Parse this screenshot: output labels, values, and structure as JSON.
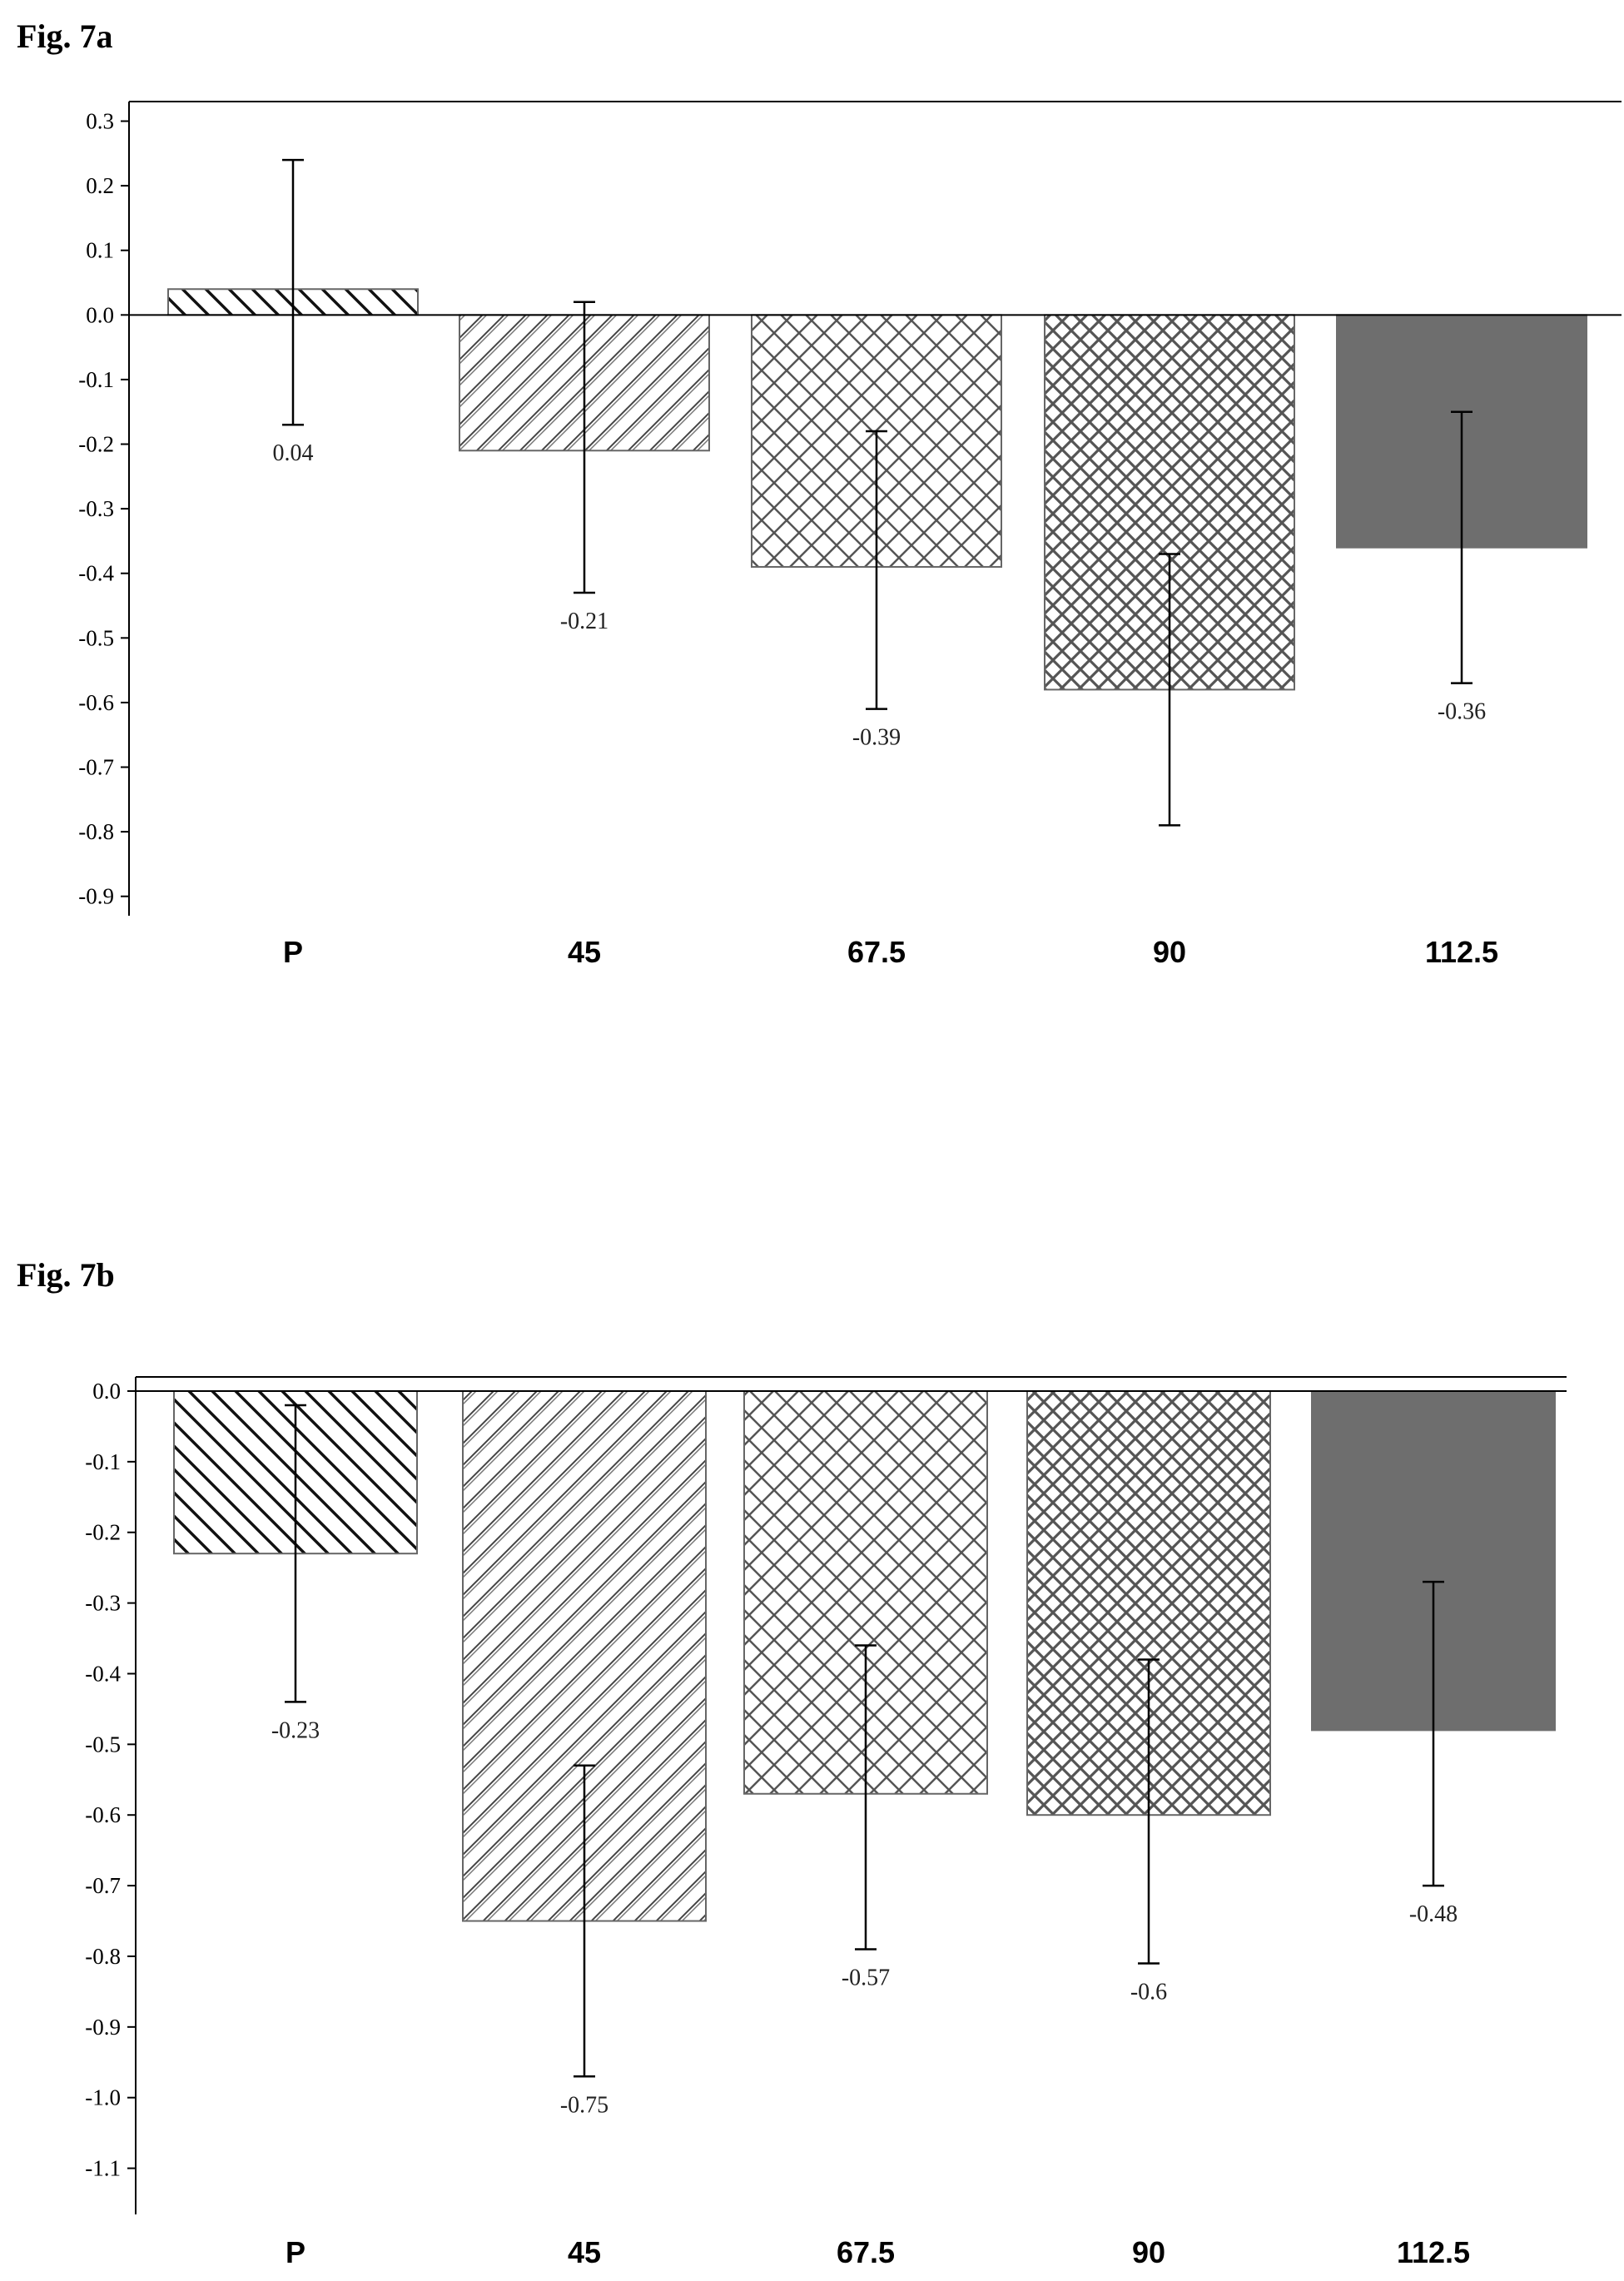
{
  "figures": [
    {
      "label": "Fig. 7a"
    },
    {
      "label": "Fig. 7b"
    }
  ],
  "chart_data": [
    {
      "type": "bar",
      "title": "",
      "xlabel": "",
      "ylabel": "",
      "categories": [
        "P",
        "45",
        "67.5",
        "90",
        "112.5"
      ],
      "values": [
        0.04,
        -0.21,
        -0.39,
        -0.58,
        -0.36
      ],
      "value_labels": [
        "0.04",
        "-0.21",
        "-0.39",
        "",
        "-0.36"
      ],
      "error_low": [
        -0.17,
        -0.43,
        -0.61,
        -0.79,
        -0.57
      ],
      "error_high": [
        0.24,
        0.02,
        -0.18,
        -0.37,
        -0.15
      ],
      "ylim": [
        -0.93,
        0.32
      ],
      "yticks": [
        0.3,
        0.2,
        0.1,
        0.0,
        -0.1,
        -0.2,
        -0.3,
        -0.4,
        -0.5,
        -0.6,
        -0.7,
        -0.8,
        -0.9
      ],
      "ytick_labels": [
        "0.3",
        "0.2",
        "0.1",
        "0.0",
        "-0.1",
        "-0.2",
        "-0.3",
        "-0.4",
        "-0.5",
        "-0.6",
        "-0.7",
        "-0.8",
        "-0.9"
      ],
      "bar_patterns": [
        "back-diagonal",
        "diagonal",
        "crosshatch",
        "dense-crosshatch",
        "solid"
      ],
      "bar_fill_color": "#6e6e6e",
      "grid": false,
      "legend": "none"
    },
    {
      "type": "bar",
      "title": "",
      "xlabel": "",
      "ylabel": "",
      "categories": [
        "P",
        "45",
        "67.5",
        "90",
        "112.5"
      ],
      "values": [
        -0.23,
        -0.75,
        -0.57,
        -0.6,
        -0.48
      ],
      "value_labels": [
        "-0.23",
        "-0.75",
        "-0.57",
        "-0.6",
        "-0.48"
      ],
      "error_low": [
        -0.44,
        -0.97,
        -0.79,
        -0.81,
        -0.7
      ],
      "error_high": [
        -0.02,
        -0.53,
        -0.36,
        -0.38,
        -0.27
      ],
      "ylim": [
        -1.17,
        0.02
      ],
      "yticks": [
        0.0,
        -0.1,
        -0.2,
        -0.3,
        -0.4,
        -0.5,
        -0.6,
        -0.7,
        -0.8,
        -0.9,
        -1.0,
        -1.1
      ],
      "ytick_labels": [
        "0.0",
        "-0.1",
        "-0.2",
        "-0.3",
        "-0.4",
        "-0.5",
        "-0.6",
        "-0.7",
        "-0.8",
        "-0.9",
        "-1.0",
        "-1.1"
      ],
      "bar_patterns": [
        "back-diagonal",
        "diagonal",
        "crosshatch",
        "dense-crosshatch",
        "solid"
      ],
      "bar_fill_color": "#6e6e6e",
      "grid": false,
      "legend": "none"
    }
  ]
}
